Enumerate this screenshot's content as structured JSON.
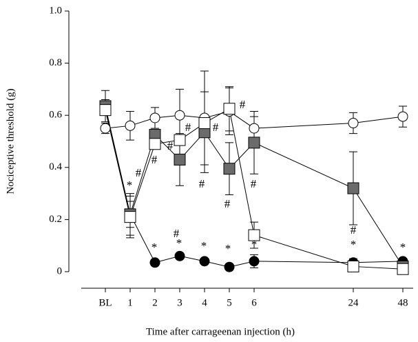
{
  "chart_data": {
    "type": "line",
    "xlabel": "Time after carrageenan injection (h)",
    "ylabel": "Nociceptive threshold (g)",
    "categories": [
      "BL",
      "1",
      "2",
      "3",
      "4",
      "5",
      "6",
      "24",
      "48"
    ],
    "ylim": [
      0,
      1.0
    ],
    "yticks": [
      0,
      0.2,
      0.4,
      0.6,
      0.8,
      {
        "value": 1.0,
        "label": "1.0"
      }
    ],
    "series": [
      {
        "color": "#ffffff",
        "marker": "circle",
        "values": [
          0.55,
          0.56,
          0.59,
          0.6,
          0.59,
          0.615,
          0.55,
          0.57,
          0.595
        ],
        "errors": [
          0.02,
          0.055,
          0.04,
          0.1,
          0.18,
          0.09,
          0.045,
          0.04,
          0.04
        ]
      },
      {
        "color": "#000000",
        "marker": "circle",
        "values": [
          0.63,
          0.22,
          0.035,
          0.06,
          0.04,
          0.018,
          0.04,
          0.035,
          0.04
        ],
        "errors": [
          0.03,
          0.05,
          0.01,
          0.01,
          0.01,
          0.01,
          0.025,
          0.015,
          0.01
        ]
      },
      {
        "color": "#6b6b6b",
        "marker": "square",
        "values": [
          0.635,
          0.22,
          0.525,
          0.43,
          0.535,
          0.395,
          0.495,
          0.32,
          0.02
        ],
        "errors": [
          0.06,
          0.08,
          0.02,
          0.1,
          0.155,
          0.1,
          0.12,
          0.14,
          0.02
        ]
      },
      {
        "color": "#ffffff",
        "marker": "square",
        "values": [
          0.62,
          0.21,
          0.49,
          0.505,
          0.57,
          0.625,
          0.14,
          0.02,
          0.01
        ],
        "errors": [
          0.02,
          0.08,
          0.02,
          0.02,
          0.02,
          0.085,
          0.05,
          0.02,
          0.01
        ]
      }
    ],
    "annotations": [
      "*",
      "*",
      "*",
      "*",
      "*",
      "*",
      "*",
      "*",
      "#",
      "#",
      "#",
      "#",
      "#",
      "#",
      "#",
      "#",
      "#",
      "#",
      "#"
    ]
  }
}
